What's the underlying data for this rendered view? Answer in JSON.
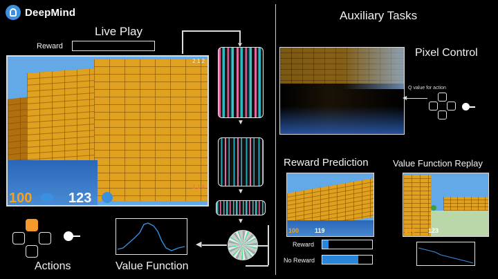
{
  "brand": {
    "name": "DeepMind"
  },
  "left": {
    "title": "Live Play",
    "reward_label": "Reward",
    "hud": {
      "health": "100",
      "ammo": "123",
      "corner_top": "2 1 2",
      "corner_bottom": "1 1 4"
    },
    "actions_label": "Actions",
    "value_function_label": "Value Function"
  },
  "right": {
    "title": "Auxiliary Tasks",
    "pixel_control": {
      "title": "Pixel Control",
      "q_label": "Q value for action"
    },
    "reward_prediction": {
      "title": "Reward Prediction",
      "hud_health": "100",
      "hud_ammo": "119",
      "reward_label": "Reward",
      "no_reward_label": "No Reward",
      "reward_level": 0.12,
      "no_reward_level": 0.72
    },
    "value_replay": {
      "title": "Value Function Replay",
      "hud_health": "100",
      "hud_ammo": "123"
    }
  },
  "colors": {
    "accent_orange": "#f39a2b",
    "bar_blue": "#2a86d6",
    "brick": "#e0a020",
    "sky": "#63a9e8"
  },
  "icons": [
    "deepmind-logo-icon",
    "dpad-icon",
    "joystick-icon",
    "arrow-icon"
  ]
}
